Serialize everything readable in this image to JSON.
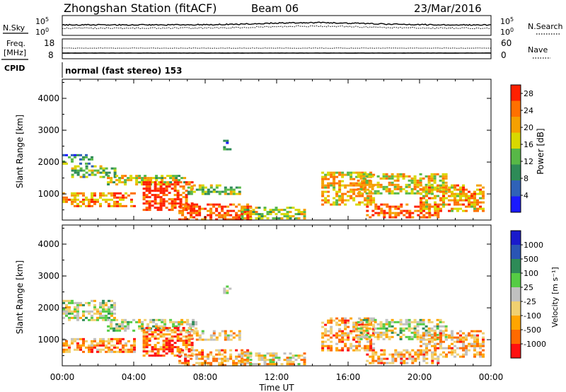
{
  "header": {
    "station": "Zhongshan Station (fitACF)",
    "beam": "Beam 06",
    "date": "23/Mar/2016"
  },
  "nsky_panel": {
    "left_label": "N.Sky",
    "right_label": "N.Search",
    "left_ticks": [
      {
        "base": "10",
        "exp": "5"
      },
      {
        "base": "10",
        "exp": "0"
      }
    ],
    "right_ticks": [
      {
        "base": "10",
        "exp": "5"
      },
      {
        "base": "10",
        "exp": "0"
      }
    ]
  },
  "freq_panel": {
    "left_label_top": "Freq.",
    "left_label_bottom": "[MHz]",
    "left_ticks": [
      "18",
      "8"
    ],
    "right_label": "Nave",
    "right_ticks": [
      "60",
      "0"
    ]
  },
  "cpid": {
    "label": "CPID",
    "text": "normal (fast stereo) 153"
  },
  "chart_data": [
    {
      "type": "heatmap",
      "title": "",
      "xlabel": "Time UT",
      "ylabel": "Slant Range [km]",
      "x_ticks": [
        "00:00",
        "04:00",
        "08:00",
        "12:00",
        "16:00",
        "20:00",
        "00:00"
      ],
      "y_ticks": [
        "1000",
        "2000",
        "3000",
        "4000"
      ],
      "xlim_hours": [
        0,
        24
      ],
      "ylim_km": [
        180,
        4600
      ],
      "colorbar": {
        "label": "Power [dB]",
        "ticks": [
          "4",
          "8",
          "12",
          "16",
          "20",
          "24",
          "28"
        ],
        "range": [
          0,
          30
        ],
        "colors": [
          "#1a1aff",
          "#2f62b8",
          "#2e8b57",
          "#57b847",
          "#d8d800",
          "#f5a000",
          "#ff7000",
          "#ff2000"
        ]
      },
      "bands": [
        {
          "t": [
            0.0,
            1.6
          ],
          "r": [
            1950,
            2250
          ],
          "level": 0.3
        },
        {
          "t": [
            0.5,
            3.0
          ],
          "r": [
            1550,
            1900
          ],
          "level": 0.45
        },
        {
          "t": [
            2.5,
            6.8
          ],
          "r": [
            1300,
            1600
          ],
          "level": 0.55
        },
        {
          "t": [
            0.0,
            4.0
          ],
          "r": [
            650,
            1050
          ],
          "level": 0.75
        },
        {
          "t": [
            4.5,
            7.2
          ],
          "r": [
            500,
            1400
          ],
          "level": 0.92
        },
        {
          "t": [
            7.0,
            10.0
          ],
          "r": [
            1000,
            1300
          ],
          "level": 0.5
        },
        {
          "t": [
            6.5,
            10.5
          ],
          "r": [
            220,
            700
          ],
          "level": 0.88
        },
        {
          "t": [
            9.0,
            9.4
          ],
          "r": [
            2400,
            2700
          ],
          "level": 0.3
        },
        {
          "t": [
            10.0,
            13.5
          ],
          "r": [
            220,
            600
          ],
          "level": 0.55
        },
        {
          "t": [
            14.5,
            17.5
          ],
          "r": [
            700,
            1700
          ],
          "level": 0.65
        },
        {
          "t": [
            16.5,
            21.5
          ],
          "r": [
            1000,
            1650
          ],
          "level": 0.6
        },
        {
          "t": [
            17.0,
            21.0
          ],
          "r": [
            250,
            700
          ],
          "level": 0.85
        },
        {
          "t": [
            20.0,
            23.6
          ],
          "r": [
            500,
            1300
          ],
          "level": 0.7
        }
      ]
    },
    {
      "type": "heatmap",
      "title": "",
      "xlabel": "Time UT",
      "ylabel": "Slant Range [km]",
      "x_ticks": [
        "00:00",
        "04:00",
        "08:00",
        "12:00",
        "16:00",
        "20:00",
        "00:00"
      ],
      "y_ticks": [
        "1000",
        "2000",
        "3000",
        "4000"
      ],
      "xlim_hours": [
        0,
        24
      ],
      "ylim_km": [
        180,
        4600
      ],
      "colorbar": {
        "label": "Velocity [m s⁻¹]",
        "ticks": [
          "1000",
          "500",
          "100",
          "25",
          "-25",
          "-100",
          "-500",
          "-1000"
        ],
        "range": [
          -1000,
          1000
        ],
        "colors": [
          "#ff1010",
          "#ff6a00",
          "#ffa500",
          "#f0d070",
          "#c0c0c0",
          "#55cc44",
          "#2e8b57",
          "#2a55b5",
          "#1a1acc"
        ]
      },
      "bands": [
        {
          "t": [
            0.0,
            3.0
          ],
          "r": [
            1600,
            2250
          ],
          "level": 0.5
        },
        {
          "t": [
            2.5,
            7.5
          ],
          "r": [
            1300,
            1650
          ],
          "level": 0.52
        },
        {
          "t": [
            0.0,
            4.0
          ],
          "r": [
            650,
            1050
          ],
          "level": 0.25
        },
        {
          "t": [
            4.5,
            7.2
          ],
          "r": [
            500,
            1400
          ],
          "level": 0.18
        },
        {
          "t": [
            7.0,
            10.0
          ],
          "r": [
            1000,
            1300
          ],
          "level": 0.35
        },
        {
          "t": [
            6.5,
            10.5
          ],
          "r": [
            220,
            700
          ],
          "level": 0.3
        },
        {
          "t": [
            9.0,
            9.4
          ],
          "r": [
            2400,
            2700
          ],
          "level": 0.5
        },
        {
          "t": [
            10.0,
            13.5
          ],
          "r": [
            220,
            600
          ],
          "level": 0.4
        },
        {
          "t": [
            14.5,
            17.5
          ],
          "r": [
            700,
            1700
          ],
          "level": 0.28
        },
        {
          "t": [
            16.5,
            21.5
          ],
          "r": [
            1000,
            1650
          ],
          "level": 0.48
        },
        {
          "t": [
            17.0,
            21.0
          ],
          "r": [
            250,
            700
          ],
          "level": 0.3
        },
        {
          "t": [
            20.0,
            23.6
          ],
          "r": [
            500,
            1300
          ],
          "level": 0.32
        }
      ]
    }
  ]
}
